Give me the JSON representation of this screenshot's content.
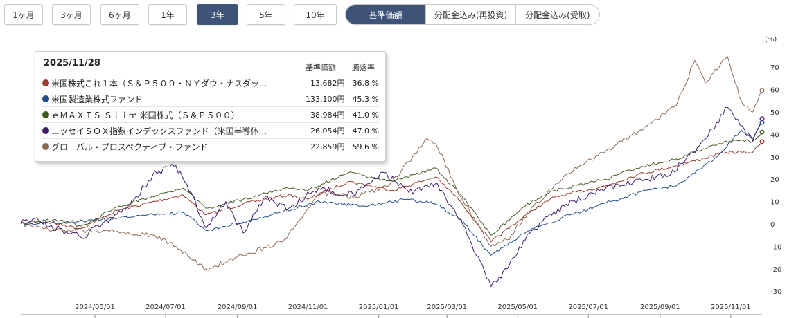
{
  "period_tabs": [
    "1ヶ月",
    "3ヶ月",
    "6ヶ月",
    "1年",
    "3年",
    "5年",
    "10年"
  ],
  "active_period": "3年",
  "mode_tabs": [
    "基準価額",
    "分配金込み(再投資)",
    "分配金込み(受取)"
  ],
  "active_mode": "基準価額",
  "tooltip": {
    "date": "2025/11/28",
    "col_price": "基準価額",
    "col_pct": "騰落率",
    "rows": [
      {
        "name": "米国株式これ１本（Ｓ＆Ｐ５００・ＮＹダウ・ナスダッ...",
        "price": "13,682円",
        "pct": "36.8 %",
        "color": "#9b3a2c"
      },
      {
        "name": "米国製造業株式ファンド",
        "price": "133,100円",
        "pct": "45.3 %",
        "color": "#1f4e8c"
      },
      {
        "name": "ｅＭＡＸＩＳ Ｓｌｉｍ 米国株式（Ｓ＆Ｐ５００）",
        "price": "38,984円",
        "pct": "41.0 %",
        "color": "#3d5a1e"
      },
      {
        "name": "ニッセイＳＯＸ指数インデックスファンド（米国半導体...",
        "price": "26,054円",
        "pct": "47.0 %",
        "color": "#3f1a6b"
      },
      {
        "name": "グローバル・プロスペクティブ・ファンド",
        "price": "22,859円",
        "pct": "59.6 %",
        "color": "#8a6a55"
      }
    ]
  },
  "chart_data": {
    "type": "line",
    "ylabel": "(%)",
    "ylim": [
      -32,
      80
    ],
    "yticks": [
      -30,
      -20,
      -10,
      0,
      10,
      20,
      30,
      40,
      50,
      60,
      70
    ],
    "xlim": [
      "2024-02-27",
      "2025-11-28"
    ],
    "xticks": [
      "2024/05/01",
      "2024/07/01",
      "2024/09/01",
      "2024/11/01",
      "2025/01/01",
      "2025/03/01",
      "2025/05/01",
      "2025/07/01",
      "2025/09/01",
      "2025/11/01"
    ],
    "grid": false,
    "series": [
      {
        "name": "米国株式これ１本（Ｓ＆Ｐ５００・ＮＹダウ・ナスダッ...",
        "color": "#9b3a2c",
        "points": [
          [
            "2024-02-27",
            0
          ],
          [
            "2024-03-20",
            1
          ],
          [
            "2024-04-19",
            -2
          ],
          [
            "2024-05-20",
            6
          ],
          [
            "2024-07-16",
            13
          ],
          [
            "2024-08-05",
            4
          ],
          [
            "2024-09-06",
            9
          ],
          [
            "2024-10-15",
            13
          ],
          [
            "2024-11-01",
            11
          ],
          [
            "2024-12-06",
            19
          ],
          [
            "2025-01-13",
            15
          ],
          [
            "2025-02-19",
            21
          ],
          [
            "2025-03-13",
            10
          ],
          [
            "2025-04-08",
            -8
          ],
          [
            "2025-05-13",
            6
          ],
          [
            "2025-06-02",
            12
          ],
          [
            "2025-07-16",
            17
          ],
          [
            "2025-08-12",
            22
          ],
          [
            "2025-09-15",
            26
          ],
          [
            "2025-10-28",
            32
          ],
          [
            "2025-11-20",
            32
          ],
          [
            "2025-11-28",
            36.8
          ]
        ]
      },
      {
        "name": "米国製造業株式ファンド",
        "color": "#1f4e8c",
        "points": [
          [
            "2024-02-27",
            0
          ],
          [
            "2024-04-15",
            1
          ],
          [
            "2024-06-15",
            4
          ],
          [
            "2024-07-17",
            5
          ],
          [
            "2024-08-05",
            -3
          ],
          [
            "2024-09-15",
            2
          ],
          [
            "2024-11-11",
            10
          ],
          [
            "2024-12-20",
            8
          ],
          [
            "2025-01-24",
            11
          ],
          [
            "2025-02-19",
            9
          ],
          [
            "2025-03-13",
            2
          ],
          [
            "2025-04-08",
            -14
          ],
          [
            "2025-05-13",
            -2
          ],
          [
            "2025-06-15",
            4
          ],
          [
            "2025-07-20",
            10
          ],
          [
            "2025-08-20",
            15
          ],
          [
            "2025-09-15",
            17
          ],
          [
            "2025-10-20",
            30
          ],
          [
            "2025-11-10",
            42
          ],
          [
            "2025-11-20",
            38
          ],
          [
            "2025-11-28",
            45.3
          ]
        ]
      },
      {
        "name": "ｅＭＡＸＩＳ Ｓｌｉｍ 米国株式（Ｓ＆Ｐ５００）",
        "color": "#3d5a1e",
        "points": [
          [
            "2024-02-27",
            0
          ],
          [
            "2024-03-28",
            2
          ],
          [
            "2024-04-19",
            -1
          ],
          [
            "2024-05-22",
            8
          ],
          [
            "2024-07-16",
            16
          ],
          [
            "2024-08-05",
            7
          ],
          [
            "2024-09-06",
            11
          ],
          [
            "2024-10-15",
            16
          ],
          [
            "2024-11-01",
            15
          ],
          [
            "2024-12-06",
            23
          ],
          [
            "2025-01-13",
            19
          ],
          [
            "2025-02-19",
            25
          ],
          [
            "2025-03-13",
            13
          ],
          [
            "2025-04-08",
            -5
          ],
          [
            "2025-05-13",
            10
          ],
          [
            "2025-06-02",
            15
          ],
          [
            "2025-07-16",
            20
          ],
          [
            "2025-08-12",
            25
          ],
          [
            "2025-09-15",
            29
          ],
          [
            "2025-10-28",
            37
          ],
          [
            "2025-11-20",
            37
          ],
          [
            "2025-11-28",
            41
          ]
        ]
      },
      {
        "name": "ニッセイＳＯＸ指数インデックスファンド（米国半導体...",
        "color": "#3f1a6b",
        "points": [
          [
            "2024-02-27",
            0
          ],
          [
            "2024-03-08",
            2
          ],
          [
            "2024-04-19",
            -6
          ],
          [
            "2024-05-31",
            8
          ],
          [
            "2024-06-20",
            22
          ],
          [
            "2024-07-10",
            26
          ],
          [
            "2024-07-25",
            12
          ],
          [
            "2024-08-05",
            -2
          ],
          [
            "2024-08-22",
            10
          ],
          [
            "2024-09-06",
            -4
          ],
          [
            "2024-09-25",
            12
          ],
          [
            "2024-10-15",
            7
          ],
          [
            "2024-11-10",
            16
          ],
          [
            "2024-12-10",
            13
          ],
          [
            "2025-01-06",
            23
          ],
          [
            "2025-01-27",
            14
          ],
          [
            "2025-02-19",
            18
          ],
          [
            "2025-03-13",
            2
          ],
          [
            "2025-04-08",
            -28
          ],
          [
            "2025-04-22",
            -20
          ],
          [
            "2025-05-13",
            -3
          ],
          [
            "2025-06-10",
            8
          ],
          [
            "2025-07-16",
            16
          ],
          [
            "2025-08-20",
            20
          ],
          [
            "2025-09-10",
            22
          ],
          [
            "2025-10-05",
            35
          ],
          [
            "2025-10-29",
            52
          ],
          [
            "2025-11-20",
            37
          ],
          [
            "2025-11-28",
            47
          ]
        ]
      },
      {
        "name": "グローバル・プロスペクティブ・ファンド",
        "color": "#8a6a55",
        "points": [
          [
            "2024-02-27",
            0
          ],
          [
            "2024-03-25",
            -3
          ],
          [
            "2024-05-10",
            -3
          ],
          [
            "2024-06-20",
            -5
          ],
          [
            "2024-07-10",
            -10
          ],
          [
            "2024-08-05",
            -20
          ],
          [
            "2024-09-06",
            -14
          ],
          [
            "2024-10-10",
            -8
          ],
          [
            "2024-11-12",
            14
          ],
          [
            "2024-12-10",
            12
          ],
          [
            "2025-01-10",
            17
          ],
          [
            "2025-02-12",
            38
          ],
          [
            "2025-02-21",
            34
          ],
          [
            "2025-03-13",
            12
          ],
          [
            "2025-04-08",
            -10
          ],
          [
            "2025-04-22",
            -7
          ],
          [
            "2025-05-15",
            8
          ],
          [
            "2025-06-12",
            22
          ],
          [
            "2025-07-15",
            32
          ],
          [
            "2025-08-15",
            42
          ],
          [
            "2025-09-15",
            53
          ],
          [
            "2025-10-01",
            73
          ],
          [
            "2025-10-10",
            63
          ],
          [
            "2025-10-29",
            75
          ],
          [
            "2025-11-10",
            55
          ],
          [
            "2025-11-20",
            50
          ],
          [
            "2025-11-28",
            59.6
          ]
        ]
      }
    ]
  }
}
